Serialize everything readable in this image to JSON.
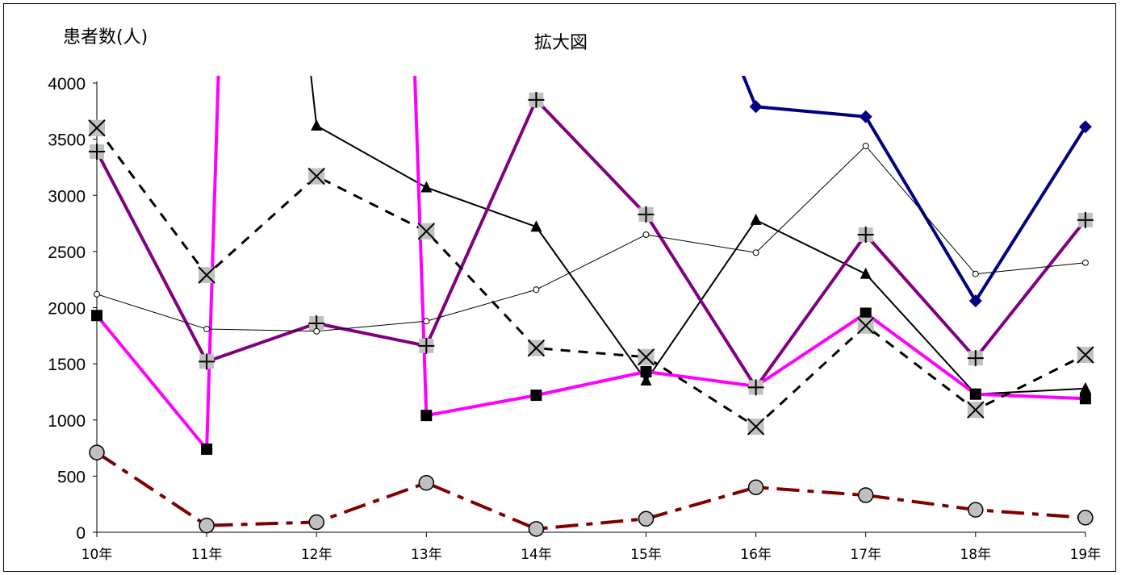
{
  "chart_data": {
    "type": "line",
    "title": "拡大図",
    "ylabel": "患者数(人)",
    "xlabel": "",
    "categories": [
      "10年",
      "11年",
      "12年",
      "13年",
      "14年",
      "15年",
      "16年",
      "17年",
      "18年",
      "19年"
    ],
    "yticks": [
      "0",
      "500",
      "1000",
      "1500",
      "2000",
      "2500",
      "3000",
      "3500",
      "4000"
    ],
    "ylim": [
      0,
      4000
    ],
    "grid": false,
    "legend": "none",
    "series": [
      {
        "style": "navy-diamond",
        "color": "#000080",
        "values": [
          null,
          null,
          null,
          null,
          null,
          null,
          3790,
          3700,
          2060,
          3610
        ],
        "top_segment_from": 4000
      },
      {
        "style": "black-triangle",
        "color": "#000000",
        "values": [
          null,
          null,
          3620,
          3070,
          2720,
          1350,
          2780,
          2300,
          1230,
          1280
        ],
        "top_segment_from": 4000
      },
      {
        "style": "magenta-square",
        "color": "#ff00ff",
        "values": [
          1930,
          740,
          null,
          1040,
          1220,
          1430,
          1300,
          1950,
          1230,
          1190
        ]
      },
      {
        "style": "purple-plus",
        "color": "#800080",
        "values": [
          3390,
          1520,
          1860,
          1660,
          3850,
          2830,
          1290,
          2650,
          1550,
          2780
        ]
      },
      {
        "style": "dashed-x",
        "color": "#000000",
        "values": [
          3600,
          2290,
          3170,
          2680,
          1640,
          1560,
          940,
          1840,
          1090,
          1580
        ]
      },
      {
        "style": "thin-open-circle",
        "color": "#000000",
        "values": [
          2120,
          1810,
          1790,
          1880,
          2160,
          2650,
          2490,
          3440,
          2300,
          2400
        ]
      },
      {
        "style": "darkred-dashdot-circle",
        "color": "#800000",
        "values": [
          710,
          60,
          90,
          440,
          30,
          120,
          400,
          330,
          200,
          130
        ]
      }
    ]
  }
}
